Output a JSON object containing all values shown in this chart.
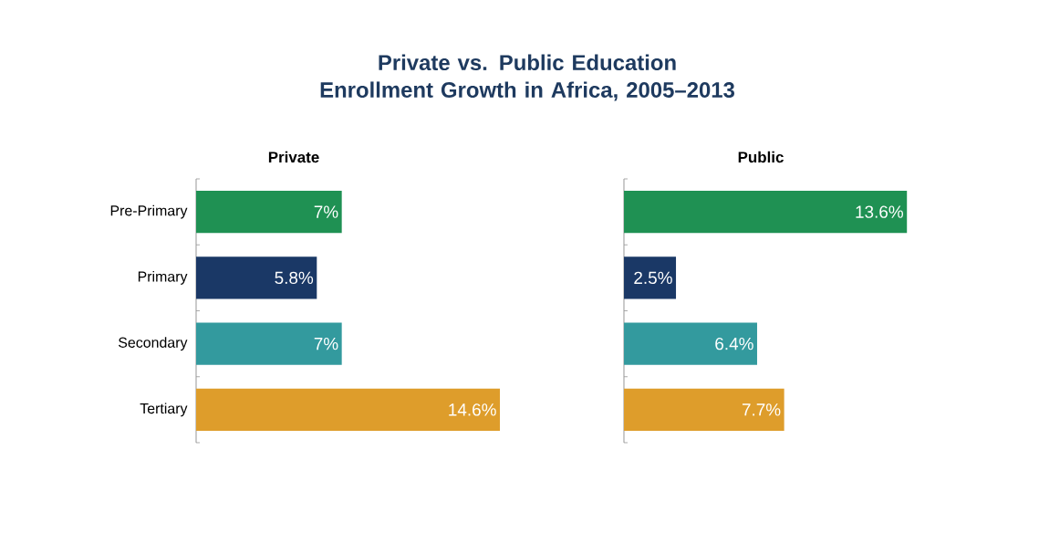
{
  "chart_data": [
    {
      "type": "bar",
      "orientation": "horizontal",
      "title": "Private vs. Public Education Enrollment Growth in Africa, 2005–2013",
      "subtitle": "Private",
      "categories": [
        "Pre-Primary",
        "Primary",
        "Secondary",
        "Tertiary"
      ],
      "values": [
        7,
        5.8,
        7,
        14.6
      ],
      "colors": [
        "#1f9153",
        "#1a3866",
        "#339a9e",
        "#de9d2b"
      ],
      "value_labels": [
        "7%",
        "5.8%",
        "7%",
        "14.6%"
      ],
      "tick_labels": "y"
    },
    {
      "type": "bar",
      "orientation": "horizontal",
      "subtitle": "Public",
      "values": [
        13.6,
        2.5,
        6.4,
        7.7
      ],
      "colors": [
        "#1f9153",
        "#1a3866",
        "#339a9e",
        "#de9d2b"
      ],
      "value_labels": [
        "13.6%",
        "2.5%",
        "6.4%",
        "7.7%"
      ],
      "tick_labels": false
    }
  ]
}
